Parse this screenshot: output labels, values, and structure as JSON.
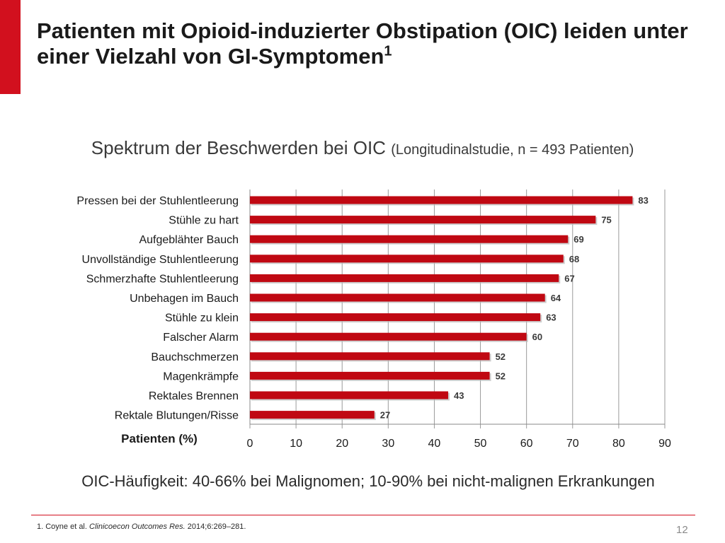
{
  "slide": {
    "title": "Patienten mit Opioid-induzierter Obstipation (OIC) leiden unter einer Vielzahl von GI-Symptomen",
    "title_superscript": "1",
    "subtitle_main": "Spektrum der Beschwerden bei OIC",
    "subtitle_paren": "(Longitudinalstudie, n = 493 Patienten)",
    "note": "OIC-Häufigkeit: 40-66% bei Malignomen; 10-90% bei nicht-malignen Erkrankungen",
    "footnote_prefix": "1. Coyne et al. ",
    "footnote_journal": "Clinicoecon Outcomes Res.",
    "footnote_suffix": " 2014;6:269–281.",
    "page_number": "12",
    "accent_color": "#d2101e"
  },
  "chart_data": {
    "type": "bar",
    "orientation": "horizontal",
    "categories": [
      "Pressen bei der Stuhlentleerung",
      "Stühle zu hart",
      "Aufgeblähter Bauch",
      "Unvollständige Stuhlentleerung",
      "Schmerzhafte Stuhlentleerung",
      "Unbehagen im Bauch",
      "Stühle zu klein",
      "Falscher Alarm",
      "Bauchschmerzen",
      "Magenkrämpfe",
      "Rektales Brennen",
      "Rektale Blutungen/Risse"
    ],
    "values": [
      83,
      75,
      69,
      68,
      67,
      64,
      63,
      60,
      52,
      52,
      43,
      27
    ],
    "xlabel": "Patienten (%)",
    "xlim": [
      0,
      90
    ],
    "xticks": [
      0,
      10,
      20,
      30,
      40,
      50,
      60,
      70,
      80,
      90
    ],
    "grid": true,
    "bar_color": "#c00812"
  }
}
